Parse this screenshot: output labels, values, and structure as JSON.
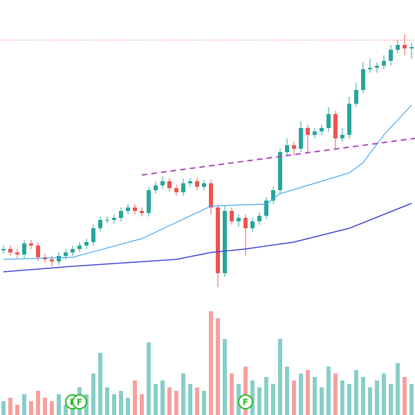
{
  "chart_data": {
    "type": "candlestick",
    "ylim": [
      0,
      420
    ],
    "vlim": [
      0,
      170
    ],
    "up_color": "#26a69a",
    "down_color": "#ef5350",
    "open": [
      58,
      60,
      55,
      52,
      68,
      65,
      48,
      45,
      42,
      50,
      55,
      60,
      65,
      70,
      90,
      102,
      102,
      105,
      115,
      120,
      115,
      112,
      145,
      152,
      158,
      148,
      142,
      155,
      158,
      150,
      155,
      120,
      25,
      115,
      100,
      105,
      90,
      100,
      108,
      130,
      145,
      200,
      210,
      205,
      235,
      225,
      230,
      235,
      255,
      220,
      225,
      270,
      290,
      320,
      322,
      325,
      332,
      348,
      355,
      350
    ],
    "high": [
      65,
      65,
      60,
      73,
      73,
      70,
      53,
      50,
      55,
      60,
      65,
      70,
      75,
      95,
      107,
      107,
      110,
      120,
      125,
      125,
      120,
      150,
      157,
      165,
      163,
      153,
      162,
      163,
      163,
      160,
      160,
      122,
      122,
      120,
      110,
      110,
      105,
      113,
      135,
      150,
      205,
      220,
      215,
      245,
      240,
      235,
      240,
      265,
      260,
      235,
      280,
      300,
      330,
      335,
      330,
      340,
      355,
      362,
      370,
      358
    ],
    "low": [
      53,
      50,
      47,
      47,
      60,
      43,
      40,
      35,
      37,
      45,
      50,
      55,
      60,
      65,
      85,
      97,
      97,
      100,
      110,
      110,
      107,
      107,
      140,
      147,
      143,
      137,
      137,
      150,
      145,
      145,
      110,
      5,
      20,
      95,
      92,
      50,
      85,
      95,
      103,
      125,
      140,
      195,
      195,
      200,
      200,
      220,
      225,
      230,
      205,
      215,
      220,
      265,
      285,
      315,
      315,
      320,
      325,
      343,
      340,
      335
    ],
    "close": [
      60,
      55,
      52,
      68,
      65,
      48,
      45,
      42,
      50,
      55,
      60,
      65,
      70,
      90,
      102,
      102,
      105,
      115,
      120,
      115,
      112,
      145,
      152,
      158,
      148,
      142,
      155,
      158,
      150,
      155,
      120,
      25,
      115,
      100,
      105,
      90,
      100,
      108,
      130,
      145,
      200,
      210,
      205,
      235,
      225,
      230,
      235,
      255,
      220,
      225,
      270,
      290,
      320,
      322,
      325,
      332,
      348,
      355,
      350,
      352
    ],
    "volume": [
      20,
      25,
      15,
      30,
      20,
      35,
      25,
      20,
      30,
      15,
      25,
      40,
      30,
      60,
      90,
      40,
      30,
      35,
      25,
      50,
      30,
      105,
      45,
      50,
      40,
      35,
      60,
      45,
      40,
      35,
      150,
      140,
      110,
      60,
      45,
      70,
      50,
      40,
      55,
      45,
      110,
      70,
      50,
      60,
      65,
      55,
      40,
      70,
      60,
      50,
      45,
      65,
      55,
      40,
      50,
      60,
      45,
      75,
      55,
      45
    ],
    "lines": [
      {
        "color": "#42a5f5",
        "x": [
          0,
          10,
          20,
          30,
          35,
          38,
          40,
          45,
          50,
          52,
          55,
          59
        ],
        "values": [
          45,
          48,
          75,
          122,
          124,
          125,
          140,
          155,
          170,
          185,
          225,
          268
        ]
      },
      {
        "color": "#3f3fd6",
        "x": [
          0,
          10,
          25,
          30,
          35,
          42,
          50,
          59
        ],
        "values": [
          27,
          35,
          45,
          55,
          60,
          70,
          90,
          126
        ]
      }
    ],
    "trendline": {
      "color": "#ab47bc",
      "x": [
        20,
        59.5
      ],
      "values": [
        167,
        220
      ]
    },
    "hline": {
      "color": "#ef5350",
      "value": 362
    },
    "markers": [
      {
        "index": 10,
        "label": "F"
      },
      {
        "index": 11,
        "label": "F"
      },
      {
        "index": 35,
        "label": "F"
      }
    ],
    "marker_color": "#22bb22"
  }
}
